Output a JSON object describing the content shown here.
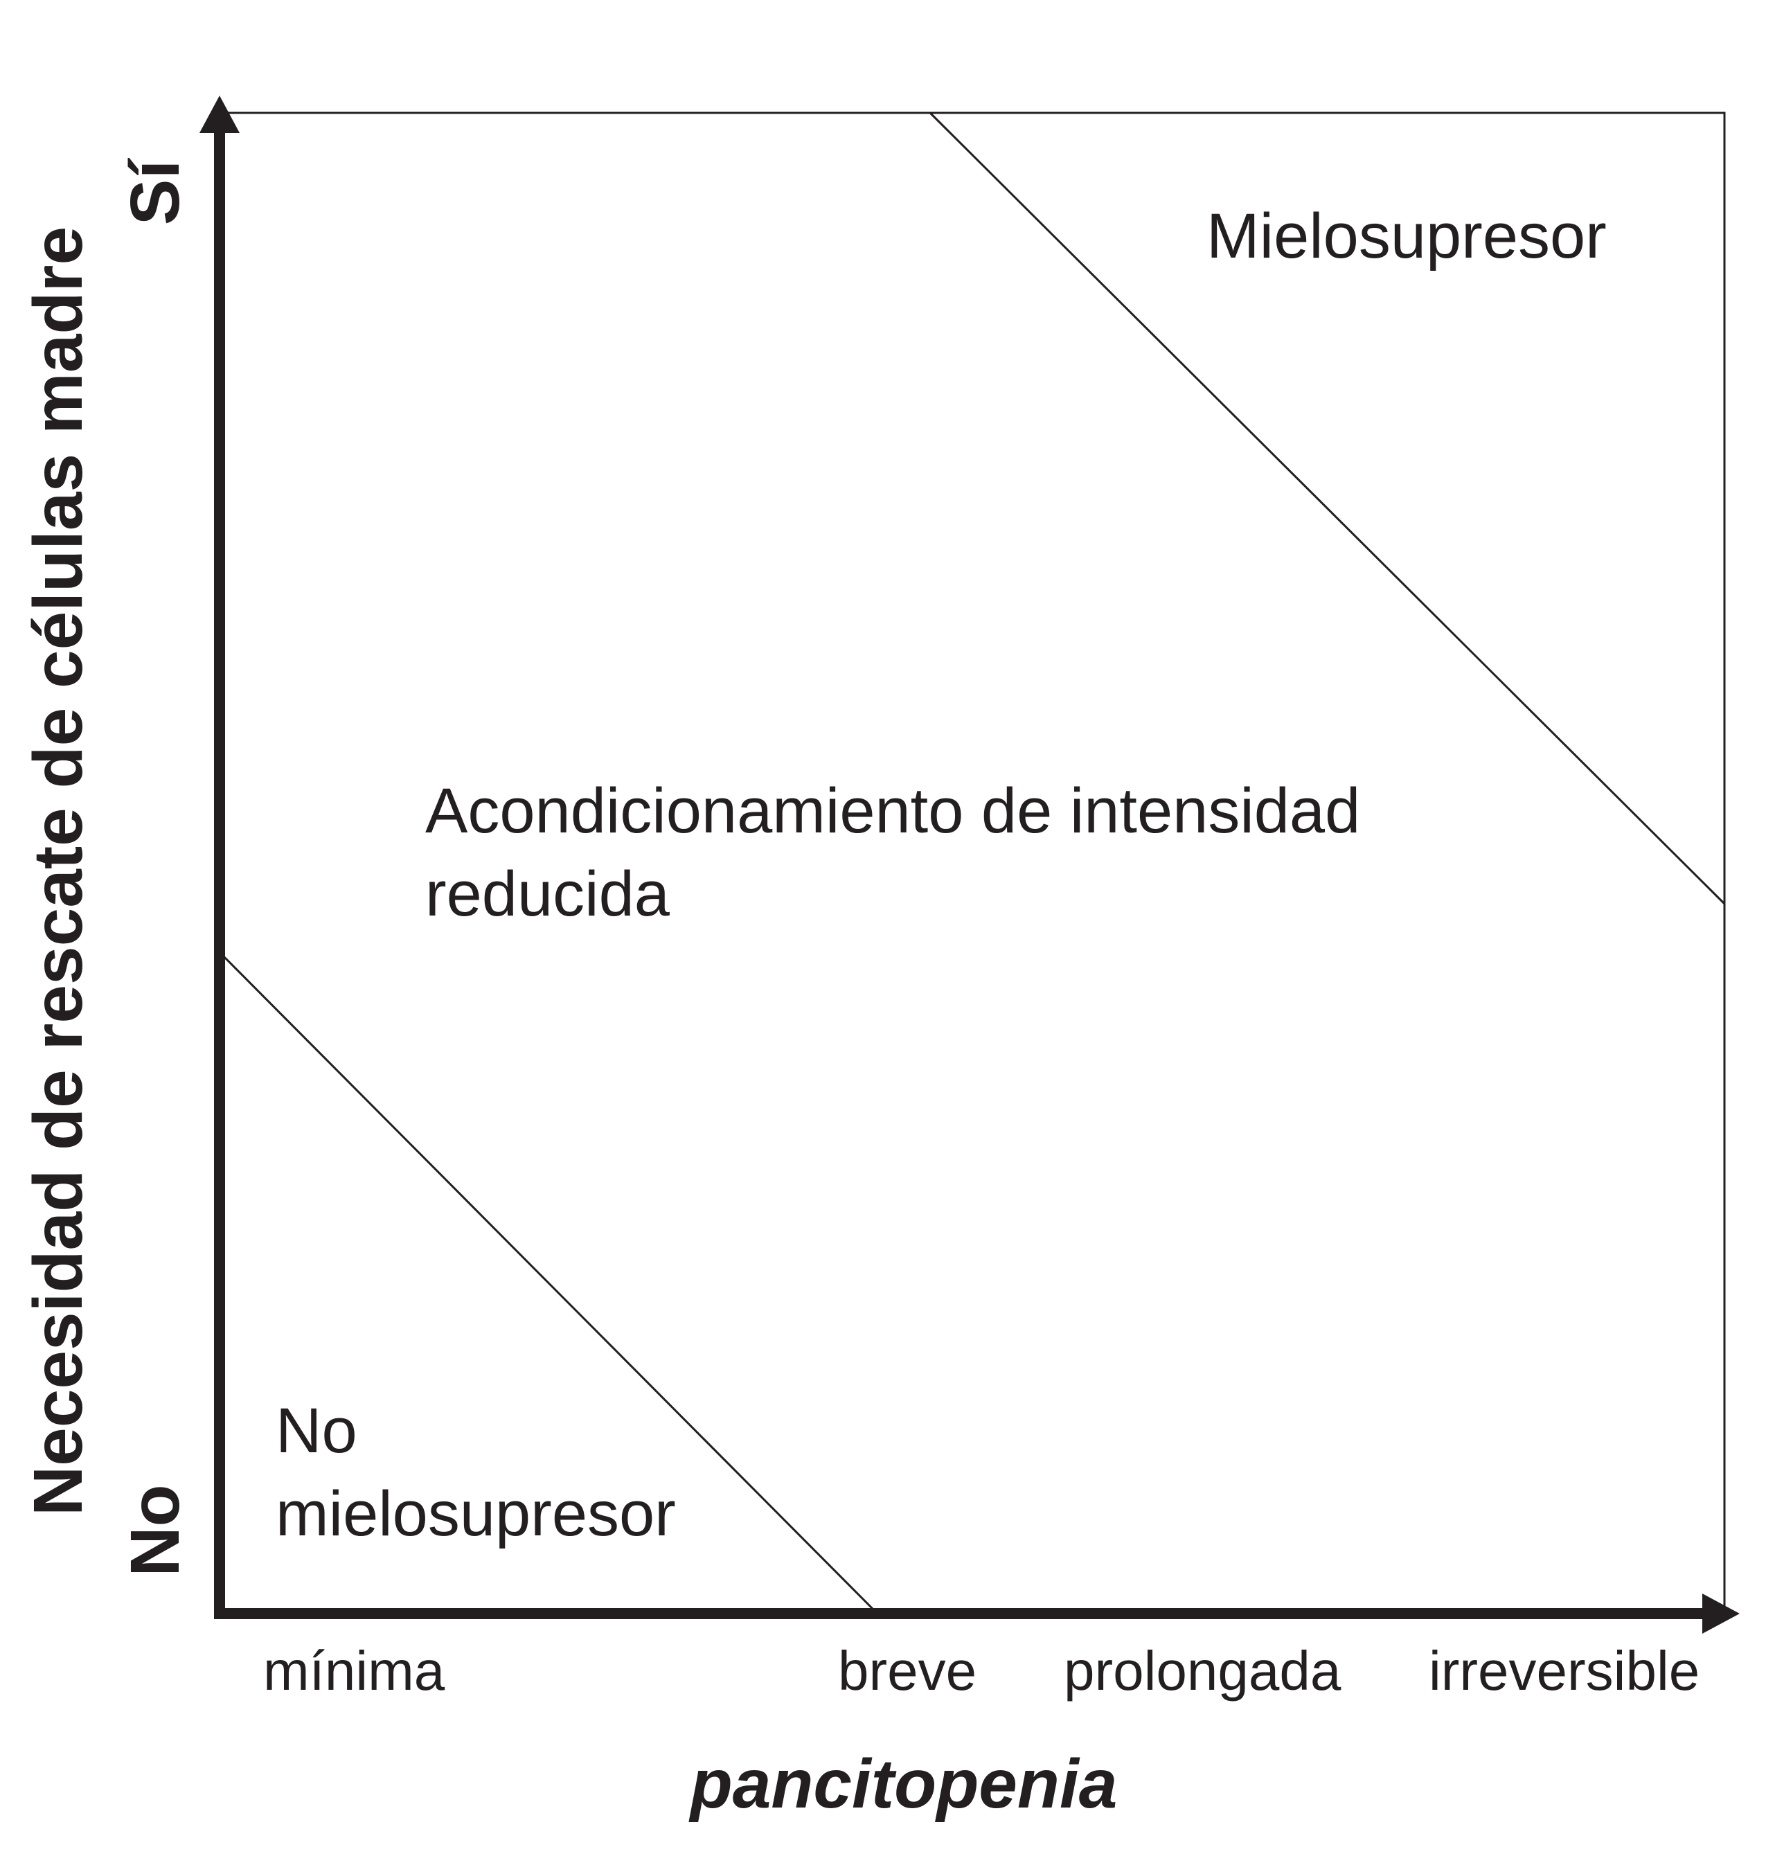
{
  "diagram": {
    "y_axis": {
      "title": "Necesidad de rescate de células madre",
      "high_label": "Sí",
      "low_label": "No"
    },
    "x_axis": {
      "title": "pancitopenia",
      "ticks": [
        "mínima",
        "breve",
        "prolongada",
        "irreversible"
      ]
    },
    "regions": {
      "myelosuppressive": "Mielosupresor",
      "reduced_intensity": {
        "line1": "Acondicionamiento de intensidad",
        "line2": "reducida"
      },
      "non_myelosuppressive": {
        "line1": "No",
        "line2": "mielosupresor"
      }
    },
    "colors": {
      "ink": "#231f20",
      "background": "#ffffff"
    }
  }
}
